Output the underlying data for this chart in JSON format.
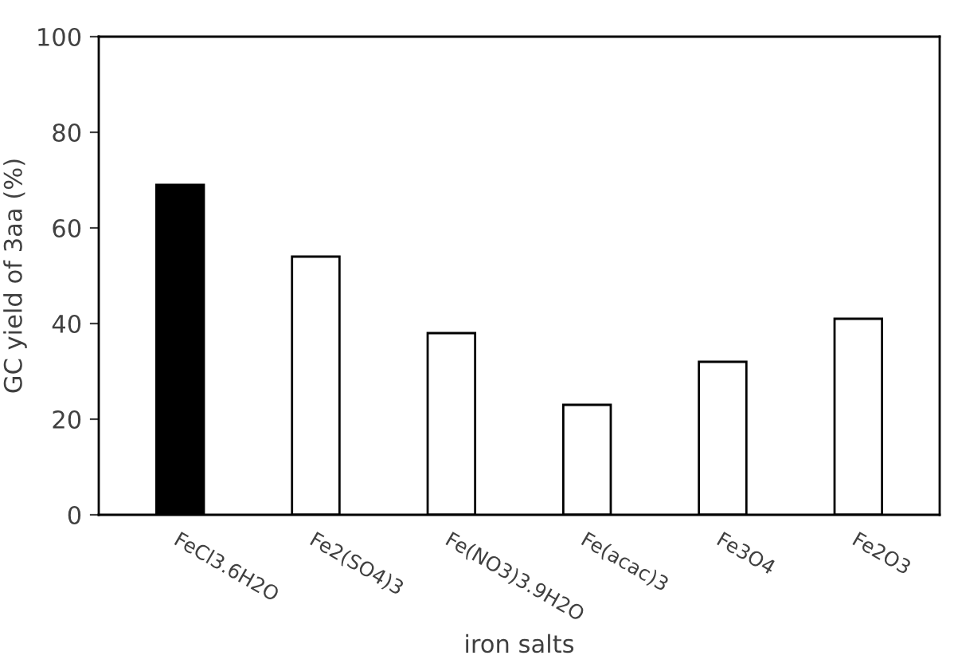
{
  "chart_data": {
    "type": "bar",
    "xlabel": "iron salts",
    "ylabel": "GC yield of 3aa (%)",
    "categories": [
      "FeCl3.6H2O",
      "Fe2(SO4)3",
      "Fe(NO3)3.9H2O",
      "Fe(acac)3",
      "Fe3O4",
      "Fe2O3"
    ],
    "values": [
      69,
      54,
      38,
      23,
      32,
      41
    ],
    "colors": [
      "#000000",
      "#ffffff",
      "#ffffff",
      "#ffffff",
      "#ffffff",
      "#ffffff"
    ],
    "ylim": [
      0,
      100
    ],
    "yticks": [
      0,
      20,
      40,
      60,
      80,
      100
    ],
    "grid": false,
    "legend": false
  }
}
